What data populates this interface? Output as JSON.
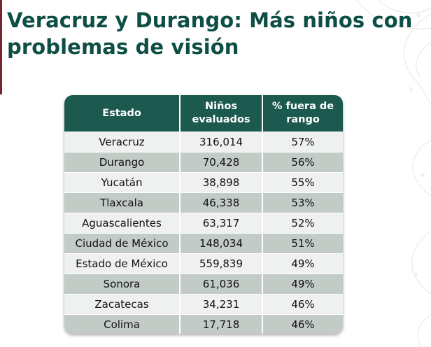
{
  "title": "Veracruz y Durango: Más niños con problemas de visión",
  "colors": {
    "title": "#0d4f45",
    "header": "#1c5a50",
    "row_light": "#eef1ef",
    "row_dark": "#c3cbc6",
    "accent": "#7a2432"
  },
  "table": {
    "headers": [
      "Estado",
      "Niños evaluados",
      "% fuera de rango"
    ],
    "rows": [
      [
        "Veracruz",
        "316,014",
        "57%"
      ],
      [
        "Durango",
        "70,428",
        "56%"
      ],
      [
        "Yucatán",
        "38,898",
        "55%"
      ],
      [
        "Tlaxcala",
        "46,338",
        "53%"
      ],
      [
        "Aguascalientes",
        "63,317",
        "52%"
      ],
      [
        "Ciudad de México",
        "148,034",
        "51%"
      ],
      [
        "Estado de México",
        "559,839",
        "49%"
      ],
      [
        "Sonora",
        "61,036",
        "49%"
      ],
      [
        "Zacatecas",
        "34,231",
        "46%"
      ],
      [
        "Colima",
        "17,718",
        "46%"
      ]
    ]
  }
}
